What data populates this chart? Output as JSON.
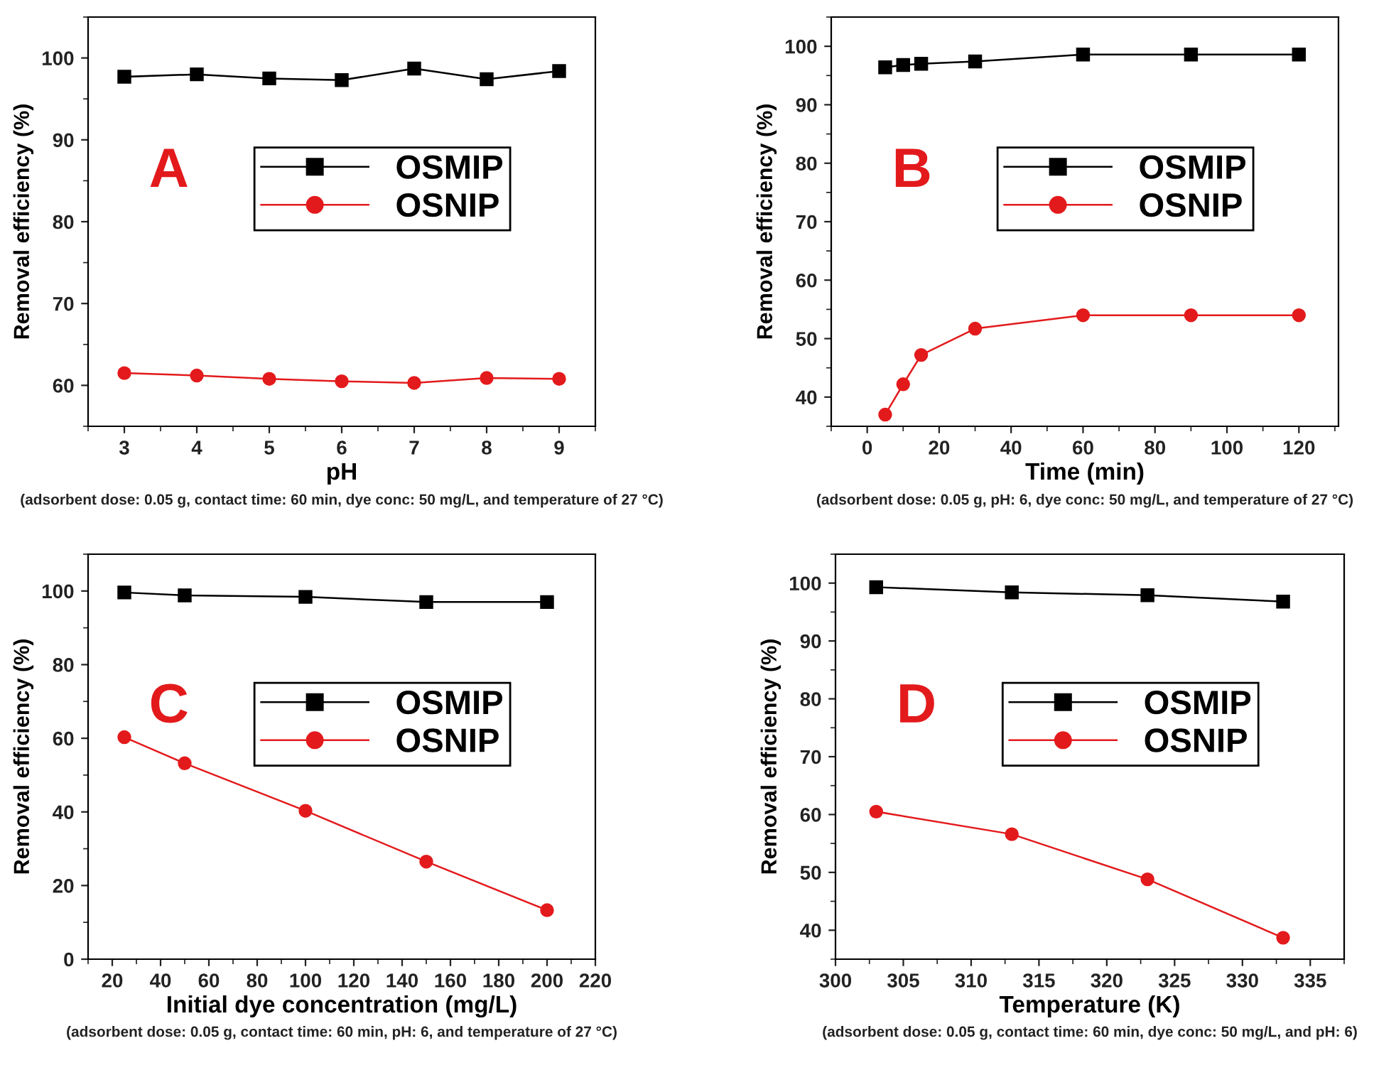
{
  "chart_data": [
    {
      "type": "line",
      "xlabel": "pH",
      "ylabel": "Removal efficiency (%)",
      "x": [
        3,
        4,
        5,
        6,
        7,
        8,
        9
      ],
      "xlim": [
        2.5,
        9.5
      ],
      "xticks": [
        3,
        4,
        5,
        6,
        7,
        8,
        9
      ],
      "ylim": [
        55,
        105
      ],
      "yticks": [
        60,
        70,
        80,
        90,
        100
      ],
      "legend": "center",
      "grid": false,
      "annotations": [
        "A",
        "(adsorbent dose: 0.05 g, contact time: 60 min, dye conc: 50 mg/L, and temperature of 27 °C)"
      ],
      "series": [
        {
          "name": "OSMIP",
          "color": "#000000",
          "marker": "square",
          "values": [
            97.7,
            98.0,
            97.5,
            97.3,
            98.7,
            97.4,
            98.4
          ]
        },
        {
          "name": "OSNIP",
          "color": "#e31a1c",
          "marker": "circle",
          "values": [
            61.5,
            61.2,
            60.8,
            60.5,
            60.3,
            60.9,
            60.8
          ]
        }
      ]
    },
    {
      "type": "line",
      "xlabel": "Time (min)",
      "ylabel": "Removal efficiency (%)",
      "x": [
        5,
        10,
        15,
        30,
        60,
        90,
        120
      ],
      "xlim": [
        -10,
        131
      ],
      "xticks": [
        0,
        20,
        40,
        60,
        80,
        100,
        120
      ],
      "ylim": [
        35,
        105
      ],
      "yticks": [
        40,
        50,
        60,
        70,
        80,
        90,
        100
      ],
      "legend": "center",
      "grid": false,
      "annotations": [
        "B",
        "(adsorbent dose: 0.05 g, pH: 6, dye conc: 50 mg/L, and temperature of 27 °C)"
      ],
      "series": [
        {
          "name": "OSMIP",
          "color": "#000000",
          "marker": "square",
          "values": [
            96.4,
            96.8,
            97.0,
            97.4,
            98.6,
            98.6,
            98.6
          ]
        },
        {
          "name": "OSNIP",
          "color": "#e31a1c",
          "marker": "circle",
          "values": [
            37.0,
            42.2,
            47.2,
            51.7,
            54.0,
            54.0,
            54.0
          ]
        }
      ]
    },
    {
      "type": "line",
      "xlabel": "Initial dye concentration (mg/L)",
      "ylabel": "Removal efficiency (%)",
      "x": [
        25,
        50,
        100,
        150,
        200
      ],
      "xlim": [
        10,
        220
      ],
      "xticks": [
        20,
        40,
        60,
        80,
        100,
        120,
        140,
        160,
        180,
        200,
        220
      ],
      "ylim": [
        0,
        110
      ],
      "yticks": [
        0,
        20,
        40,
        60,
        80,
        100
      ],
      "legend": "center",
      "grid": false,
      "annotations": [
        "C",
        "(adsorbent dose: 0.05 g, contact time: 60 min, pH: 6, and temperature of 27 °C)"
      ],
      "series": [
        {
          "name": "OSMIP",
          "color": "#000000",
          "marker": "square",
          "values": [
            99.6,
            98.8,
            98.4,
            97.0,
            97.0
          ]
        },
        {
          "name": "OSNIP",
          "color": "#e31a1c",
          "marker": "circle",
          "values": [
            60.3,
            53.2,
            40.3,
            26.5,
            13.3
          ]
        }
      ]
    },
    {
      "type": "line",
      "xlabel": "Temperature (K)",
      "ylabel": "Removal efficiency (%)",
      "x": [
        303,
        313,
        323,
        333
      ],
      "xlim": [
        300,
        337.5
      ],
      "xticks": [
        300,
        305,
        310,
        315,
        320,
        325,
        330,
        335
      ],
      "ylim": [
        35,
        105
      ],
      "yticks": [
        40,
        50,
        60,
        70,
        80,
        90,
        100
      ],
      "legend": "center",
      "grid": false,
      "annotations": [
        "D",
        "(adsorbent dose: 0.05 g, contact time: 60 min, dye conc: 50 mg/L, and pH: 6)"
      ],
      "series": [
        {
          "name": "OSMIP",
          "color": "#000000",
          "marker": "square",
          "values": [
            99.3,
            98.4,
            97.9,
            96.8
          ]
        },
        {
          "name": "OSNIP",
          "color": "#e31a1c",
          "marker": "circle",
          "values": [
            60.5,
            56.6,
            48.8,
            38.7
          ]
        }
      ]
    }
  ]
}
